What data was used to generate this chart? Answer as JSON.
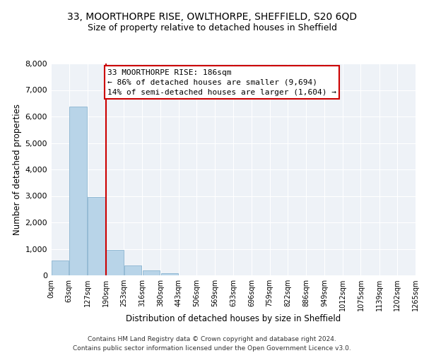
{
  "title1": "33, MOORTHORPE RISE, OWLTHORPE, SHEFFIELD, S20 6QD",
  "title2": "Size of property relative to detached houses in Sheffield",
  "xlabel": "Distribution of detached houses by size in Sheffield",
  "ylabel": "Number of detached properties",
  "bin_edges": [
    0,
    63,
    127,
    190,
    253,
    316,
    380,
    443,
    506,
    569,
    633,
    696,
    759,
    822,
    886,
    949,
    1012,
    1075,
    1139,
    1202,
    1265
  ],
  "bin_labels": [
    "0sqm",
    "63sqm",
    "127sqm",
    "190sqm",
    "253sqm",
    "316sqm",
    "380sqm",
    "443sqm",
    "506sqm",
    "569sqm",
    "633sqm",
    "696sqm",
    "759sqm",
    "822sqm",
    "886sqm",
    "949sqm",
    "1012sqm",
    "1075sqm",
    "1139sqm",
    "1202sqm",
    "1265sqm"
  ],
  "bar_heights": [
    560,
    6380,
    2950,
    970,
    380,
    190,
    90,
    0,
    0,
    0,
    0,
    0,
    0,
    0,
    0,
    0,
    0,
    0,
    0,
    0
  ],
  "bar_color": "#b8d4e8",
  "bar_edge_color": "#8ab4d0",
  "vline_x": 190,
  "vline_color": "#cc0000",
  "ylim": [
    0,
    8000
  ],
  "yticks": [
    0,
    1000,
    2000,
    3000,
    4000,
    5000,
    6000,
    7000,
    8000
  ],
  "annotation_title": "33 MOORTHORPE RISE: 186sqm",
  "annotation_line1": "← 86% of detached houses are smaller (9,694)",
  "annotation_line2": "14% of semi-detached houses are larger (1,604) →",
  "annotation_box_color": "#ffffff",
  "annotation_box_edge": "#cc0000",
  "footer1": "Contains HM Land Registry data © Crown copyright and database right 2024.",
  "footer2": "Contains public sector information licensed under the Open Government Licence v3.0.",
  "background_color": "#eef2f7",
  "grid_color": "#ffffff",
  "title1_fontsize": 10,
  "title2_fontsize": 9,
  "ylabel_text": "Number of detached properties"
}
